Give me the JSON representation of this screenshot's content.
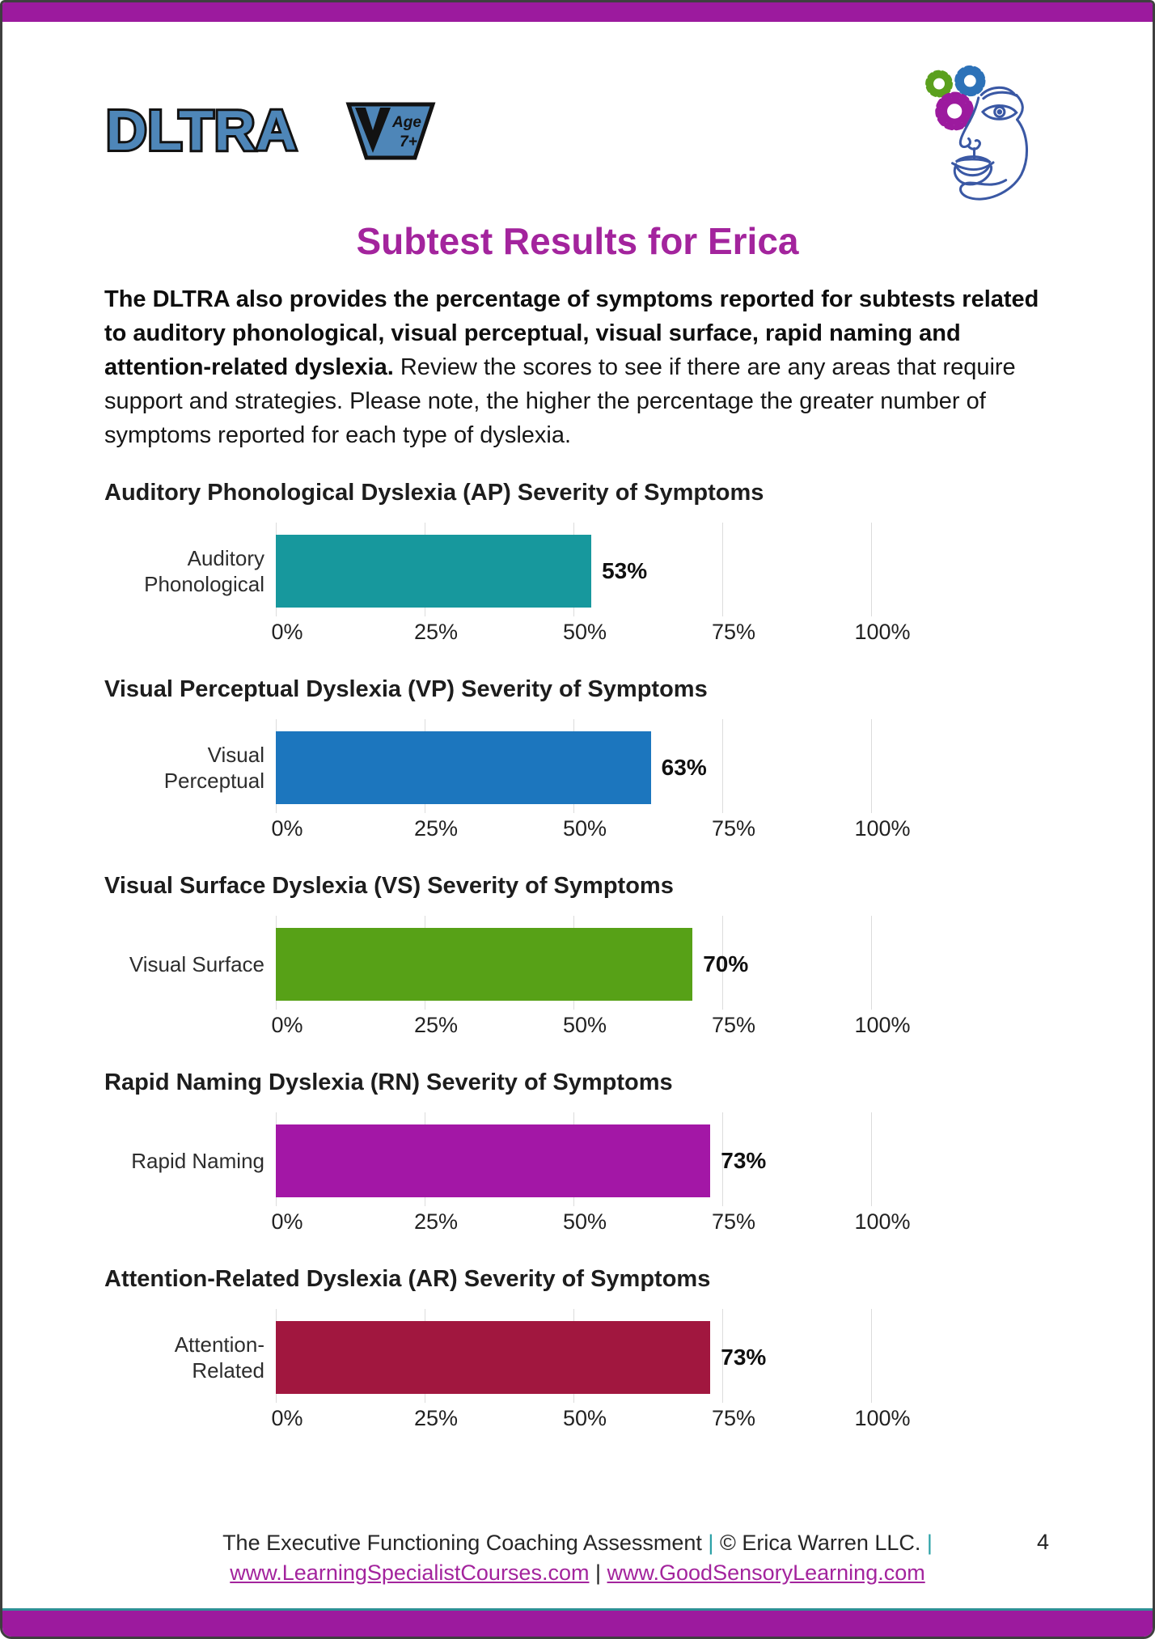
{
  "header": {
    "logo_text": "DLTRA",
    "badge_line1": "Age",
    "badge_line2": "7+"
  },
  "title": "Subtest Results for Erica",
  "intro_bold": "The DLTRA also provides the percentage of symptoms reported for subtests related to auditory phonological, visual perceptual, visual surface, rapid naming and attention-related dyslexia.",
  "intro_regular": "Review the scores to see if there are any areas that require support and strategies. Please note, the higher the percentage the greater number of symptoms reported for each type of dyslexia.",
  "chart_data": [
    {
      "type": "bar",
      "orientation": "horizontal",
      "title": "Auditory Phonological Dyslexia (AP) Severity of Symptoms",
      "categories": [
        "Auditory\nPhonological"
      ],
      "values": [
        53
      ],
      "data_label": "53%",
      "bar_color": "#17989D",
      "xticks": [
        "0%",
        "25%",
        "50%",
        "75%",
        "100%"
      ],
      "xlim": [
        0,
        100
      ],
      "grid": true,
      "legend": "none"
    },
    {
      "type": "bar",
      "orientation": "horizontal",
      "title": "Visual Perceptual Dyslexia (VP) Severity of Symptoms",
      "categories": [
        "Visual\nPerceptual"
      ],
      "values": [
        63
      ],
      "data_label": "63%",
      "bar_color": "#1C76BE",
      "xticks": [
        "0%",
        "25%",
        "50%",
        "75%",
        "100%"
      ],
      "xlim": [
        0,
        100
      ],
      "grid": true,
      "legend": "none"
    },
    {
      "type": "bar",
      "orientation": "horizontal",
      "title": "Visual Surface Dyslexia (VS) Severity of Symptoms",
      "categories": [
        "Visual Surface"
      ],
      "values": [
        70
      ],
      "data_label": "70%",
      "bar_color": "#57A117",
      "xticks": [
        "0%",
        "25%",
        "50%",
        "75%",
        "100%"
      ],
      "xlim": [
        0,
        100
      ],
      "grid": true,
      "legend": "none"
    },
    {
      "type": "bar",
      "orientation": "horizontal",
      "title": "Rapid Naming Dyslexia (RN) Severity of Symptoms",
      "categories": [
        "Rapid Naming"
      ],
      "values": [
        73
      ],
      "data_label": "73%",
      "bar_color": "#A317A6",
      "xticks": [
        "0%",
        "25%",
        "50%",
        "75%",
        "100%"
      ],
      "xlim": [
        0,
        100
      ],
      "grid": true,
      "legend": "none"
    },
    {
      "type": "bar",
      "orientation": "horizontal",
      "title": "Attention-Related Dyslexia (AR) Severity of Symptoms",
      "categories": [
        "Attention-\nRelated"
      ],
      "values": [
        73
      ],
      "data_label": "73%",
      "bar_color": "#A1173F",
      "xticks": [
        "0%",
        "25%",
        "50%",
        "75%",
        "100%"
      ],
      "xlim": [
        0,
        100
      ],
      "grid": true,
      "legend": "none"
    }
  ],
  "footer": {
    "line1_text": "The Executive Functioning Coaching Assessment",
    "pipe1": "|",
    "copyright": "© Erica Warren LLC.",
    "pipe2": "|",
    "link1": "www.LearningSpecialistCourses.com",
    "pipe3": "|",
    "link2": "www.GoodSensoryLearning.com",
    "page_number": "4"
  },
  "colors": {
    "band_purple": "#9C1A9E",
    "title_magenta": "#A3249D",
    "teal_rule": "#2E8F96",
    "footer_pipe_teal": "#2AA0A6",
    "logo_blue": "#4E86B8"
  }
}
